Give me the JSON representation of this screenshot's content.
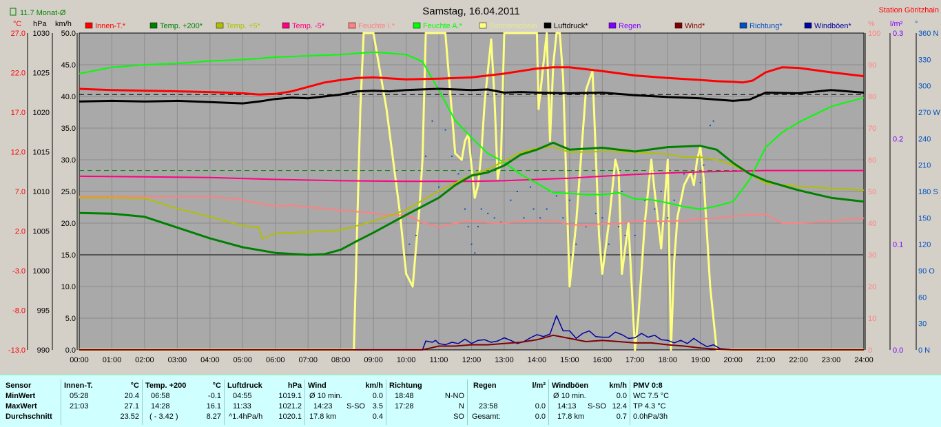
{
  "header": {
    "title": "Samstag, 16.04.2011",
    "station": "Station Göritzhain",
    "monthly_avg": "11.7 Monat-Ø"
  },
  "legend": [
    {
      "label": "Innen-T.*",
      "color": "#ff0000"
    },
    {
      "label": "Temp. +200*",
      "color": "#008000"
    },
    {
      "label": "Temp. +5*",
      "color": "#b0c000"
    },
    {
      "label": "Temp. -5*",
      "color": "#ff0080"
    },
    {
      "label": "Feuchte I.*",
      "color": "#ff8080"
    },
    {
      "label": "Feuchte A.*",
      "color": "#00ff00"
    },
    {
      "label": "Sonnenschein",
      "color": "#ffff80"
    },
    {
      "label": "Luftdruck*",
      "color": "#000000"
    },
    {
      "label": "Regen",
      "color": "#8000ff"
    },
    {
      "label": "Wind*",
      "color": "#800000"
    },
    {
      "label": "Richtung*",
      "color": "#0050c0"
    },
    {
      "label": "Windböen*",
      "color": "#0000a0"
    }
  ],
  "axes": {
    "temp_unit": "°C",
    "press_unit": "hPa",
    "speed_unit": "km/h",
    "pct_unit": "%",
    "rain_unit": "l/m²",
    "dir_unit": "°",
    "temp_ticks": [
      "27.0",
      "22.0",
      "17.0",
      "12.0",
      "7.0",
      "2.0",
      "-3.0",
      "-8.0",
      "-13.0"
    ],
    "press_ticks": [
      "1030",
      "1025",
      "1020",
      "1015",
      "1010",
      "1005",
      "1000",
      "995",
      "990"
    ],
    "speed_ticks": [
      "50.0",
      "45.0",
      "40.0",
      "35.0",
      "30.0",
      "25.0",
      "20.0",
      "15.0",
      "10.0",
      "5.0",
      "0.0"
    ],
    "pct_ticks": [
      "100",
      "90",
      "80",
      "70",
      "60",
      "50",
      "40",
      "30",
      "20",
      "10",
      "0"
    ],
    "rain_ticks": [
      "0.3",
      "0.2",
      "0.1",
      "0.0"
    ],
    "dir_ticks": [
      "360 N",
      "330",
      "300",
      "270 W",
      "240",
      "210",
      "180 S",
      "150",
      "120",
      "90 O",
      "60",
      "30",
      "0 N"
    ],
    "time_ticks": [
      "00:00",
      "01:00",
      "02:00",
      "03:00",
      "04:00",
      "05:00",
      "06:00",
      "07:00",
      "08:00",
      "09:00",
      "10:00",
      "11:00",
      "12:00",
      "13:00",
      "14:00",
      "15:00",
      "16:00",
      "17:00",
      "18:00",
      "19:00",
      "20:00",
      "21:00",
      "22:00",
      "23:00",
      "24:00"
    ]
  },
  "chart_data": {
    "type": "line",
    "xlabel": "",
    "x_unit": "hours",
    "xlim": [
      0,
      24
    ],
    "ylim_speed": [
      0,
      50
    ],
    "ylim_temp": [
      -13,
      27
    ],
    "ylim_pressure": [
      990,
      1030
    ],
    "ylim_percent": [
      0,
      100
    ],
    "ylim_rain": [
      0,
      0.3
    ],
    "ylim_direction": [
      0,
      360
    ],
    "grid": true,
    "reference_lines": [
      {
        "axis": "speed",
        "value": 15.0,
        "color": "#555555",
        "style": "solid"
      },
      {
        "axis": "speed",
        "value": 40.3,
        "color": "#000000",
        "style": "dashed"
      },
      {
        "axis": "speed",
        "value": 28.3,
        "color": "#008000",
        "style": "dashed"
      }
    ],
    "series": [
      {
        "name": "Innen-T.*",
        "axis": "speed",
        "color": "#ff0000",
        "width": 3,
        "x": [
          0,
          1,
          2,
          3,
          4,
          5,
          5.5,
          6,
          6.5,
          7,
          7.5,
          8,
          8.5,
          9,
          10,
          11,
          12,
          13,
          13.5,
          14,
          14.5,
          15,
          16,
          17,
          18,
          19,
          19.5,
          20,
          20.3,
          20.6,
          21,
          21.5,
          22,
          23,
          24
        ],
        "y": [
          41.2,
          41.0,
          40.9,
          40.8,
          40.7,
          40.5,
          40.3,
          40.4,
          40.8,
          41.5,
          42.2,
          42.6,
          42.9,
          43.0,
          42.7,
          42.8,
          43.0,
          43.6,
          44.0,
          44.4,
          44.6,
          44.6,
          44.0,
          43.3,
          42.9,
          42.6,
          42.4,
          42.3,
          42.2,
          42.5,
          43.8,
          44.6,
          44.5,
          43.8,
          43.2
        ]
      },
      {
        "name": "Luftdruck*",
        "axis": "speed",
        "color": "#000000",
        "width": 3,
        "x": [
          0,
          1,
          2,
          3,
          4,
          5,
          5.5,
          6,
          6.5,
          7,
          7.5,
          8,
          8.5,
          9,
          9.5,
          10,
          11,
          12,
          12.5,
          13,
          13.5,
          14,
          15,
          16,
          17,
          18,
          19,
          19.5,
          20,
          20.5,
          21,
          22,
          23,
          24
        ],
        "y": [
          39.2,
          39.3,
          39.2,
          39.3,
          39.1,
          38.9,
          39.2,
          39.6,
          39.8,
          39.7,
          40.0,
          40.3,
          40.8,
          40.9,
          40.8,
          41.0,
          41.2,
          41.0,
          41.1,
          40.6,
          40.7,
          40.6,
          40.5,
          40.6,
          40.2,
          39.9,
          39.7,
          39.5,
          39.3,
          39.5,
          40.6,
          40.5,
          41.0,
          40.6
        ]
      },
      {
        "name": "Feuchte A.*",
        "axis": "speed",
        "color": "#00ff00",
        "width": 2,
        "x": [
          0,
          1,
          2,
          3,
          4,
          5,
          6,
          7,
          8,
          9,
          9.5,
          10,
          10.5,
          11,
          11.5,
          12,
          12.5,
          13,
          13.5,
          14,
          14.5,
          15,
          15.5,
          16,
          16.5,
          17,
          17.5,
          18,
          18.5,
          19,
          19.5,
          20,
          20.5,
          21,
          21.5,
          22,
          23,
          24
        ],
        "y": [
          43.6,
          44.6,
          45.0,
          45.2,
          45.6,
          45.8,
          46.2,
          46.4,
          46.6,
          47.0,
          46.8,
          46.6,
          45.5,
          41.0,
          36.2,
          33.5,
          31.0,
          29.6,
          27.7,
          26.3,
          24.8,
          24.7,
          24.5,
          24.5,
          24.8,
          23.8,
          23.7,
          23.2,
          22.6,
          22.2,
          22.7,
          23.4,
          26.8,
          32.0,
          34.3,
          35.9,
          38.4,
          39.8
        ]
      },
      {
        "name": "Temp. +5*",
        "axis": "speed",
        "color": "#b0c000",
        "width": 2,
        "x": [
          0,
          1,
          2,
          3,
          4,
          5,
          5.5,
          5.6,
          6,
          7,
          8,
          9,
          10,
          11,
          12,
          12.5,
          13,
          13.5,
          14,
          14.5,
          15,
          16,
          17,
          18,
          18.5,
          19,
          19.5,
          20,
          20.5,
          21,
          22,
          23,
          24
        ],
        "y": [
          24.0,
          24.0,
          23.9,
          22.3,
          21.0,
          19.6,
          19.3,
          17.5,
          18.4,
          18.6,
          18.9,
          20.3,
          22.1,
          25.1,
          27.6,
          28.5,
          29.8,
          31.2,
          31.8,
          32.0,
          31.2,
          31.3,
          31.2,
          30.9,
          30.4,
          30.4,
          30.0,
          29.2,
          27.8,
          26.3,
          25.8,
          25.5,
          25.2
        ]
      },
      {
        "name": "Temp. +200*",
        "axis": "speed",
        "color": "#008000",
        "width": 3,
        "x": [
          0,
          1,
          2,
          3,
          4,
          5,
          6,
          7,
          7.5,
          8,
          8.5,
          9,
          10,
          11,
          11.5,
          12,
          12.5,
          13,
          13.5,
          14,
          14.5,
          15,
          16,
          17,
          18,
          19,
          19.5,
          20,
          20.5,
          21,
          22,
          23,
          24
        ],
        "y": [
          21.6,
          21.5,
          21.0,
          19.3,
          17.6,
          16.2,
          15.3,
          15.0,
          15.1,
          15.8,
          17.2,
          18.5,
          21.3,
          24.0,
          26.0,
          27.5,
          28.0,
          29.1,
          30.8,
          31.6,
          32.7,
          31.6,
          31.9,
          31.3,
          32.0,
          32.2,
          31.6,
          29.5,
          27.8,
          26.7,
          25.2,
          24.0,
          23.4
        ]
      },
      {
        "name": "Temp. -5*",
        "axis": "speed",
        "color": "#ff0080",
        "width": 2,
        "x": [
          0,
          2,
          4,
          6,
          8,
          10,
          11,
          12,
          13,
          14,
          15,
          16,
          17,
          18,
          19,
          20,
          21,
          22,
          23,
          24
        ],
        "y": [
          27.4,
          27.3,
          27.2,
          26.9,
          26.7,
          26.6,
          26.6,
          26.6,
          26.7,
          26.9,
          27.1,
          27.4,
          27.7,
          27.9,
          28.1,
          28.2,
          28.3,
          28.3,
          28.3,
          28.3
        ]
      },
      {
        "name": "Feuchte I.*",
        "axis": "speed",
        "color": "#ff8080",
        "width": 2,
        "x": [
          0,
          1,
          2,
          3,
          4,
          5,
          5.5,
          6,
          6.5,
          7,
          7.5,
          8,
          9,
          9.5,
          10,
          10.5,
          11,
          11.5,
          12,
          12.5,
          13,
          13.5,
          14,
          14.5,
          15,
          15.5,
          16,
          16.5,
          17,
          17.5,
          18,
          18.5,
          19,
          19.5,
          20,
          20.5,
          21,
          21.5,
          22,
          23,
          24
        ],
        "y": [
          24.2,
          24.2,
          24.2,
          24.2,
          24.2,
          23.7,
          23.1,
          22.7,
          22.8,
          22.5,
          22.3,
          22.0,
          21.6,
          21.2,
          21.3,
          20.1,
          19.4,
          20.0,
          20.4,
          20.1,
          20.0,
          20.3,
          20.4,
          20.4,
          19.8,
          19.6,
          19.9,
          19.9,
          20.4,
          20.3,
          20.3,
          20.4,
          20.7,
          20.8,
          21.1,
          21.3,
          21.4,
          20.0,
          20.0,
          20.3,
          20.8
        ]
      },
      {
        "name": "Sonnenschein",
        "axis": "speed",
        "color": "#ffff80",
        "width": 3,
        "x": [
          0,
          8.4,
          8.6,
          8.7,
          8.8,
          9.0,
          9.4,
          9.6,
          9.8,
          10.0,
          10.2,
          10.3,
          10.4,
          10.5,
          10.6,
          11.2,
          11.5,
          11.7,
          11.8,
          11.9,
          12.0,
          12.1,
          12.2,
          12.3,
          12.4,
          12.5,
          12.6,
          12.7,
          12.8,
          12.9,
          13.0,
          13.5,
          14.0,
          14.05,
          14.3,
          14.4,
          14.5,
          14.6,
          14.7,
          14.8,
          15.0,
          15.2,
          15.5,
          15.7,
          15.9,
          16.0,
          16.2,
          16.4,
          16.5,
          16.6,
          16.8,
          17.0,
          17.1,
          17.3,
          17.5,
          17.6,
          17.8,
          18.0,
          18.1,
          18.2,
          18.3,
          18.5,
          18.7,
          18.8,
          18.9,
          19.0,
          19.1,
          19.3,
          19.5,
          24
        ],
        "y": [
          0,
          0,
          38,
          50,
          50,
          50,
          38,
          30,
          22,
          12,
          10,
          16,
          22,
          30,
          50,
          50,
          31,
          30,
          33,
          34,
          29,
          24,
          26,
          31,
          39,
          44,
          49,
          40,
          27,
          30,
          50,
          50,
          50,
          38,
          50,
          33,
          45,
          50,
          50,
          43,
          10,
          20,
          41,
          44,
          18,
          12,
          20,
          30,
          28,
          12,
          20,
          0,
          5,
          20,
          30,
          25,
          16,
          30,
          0,
          14,
          21,
          26,
          28,
          26,
          30,
          32,
          27,
          10,
          0,
          0
        ]
      },
      {
        "name": "Windböen*",
        "axis": "speed",
        "color": "#0000a0",
        "width": 1.5,
        "x": [
          0,
          10.5,
          10.6,
          10.8,
          10.9,
          11.0,
          11.2,
          11.4,
          11.6,
          11.8,
          12.0,
          12.2,
          12.4,
          12.6,
          12.8,
          13.0,
          13.2,
          13.4,
          13.6,
          13.8,
          14.0,
          14.2,
          14.4,
          14.6,
          14.8,
          15.0,
          15.2,
          15.4,
          15.6,
          15.8,
          16.0,
          16.2,
          16.4,
          16.6,
          16.8,
          17.0,
          17.2,
          17.4,
          17.6,
          17.8,
          18.0,
          18.2,
          18.4,
          18.6,
          18.8,
          19.0,
          19.2,
          19.4,
          19.6,
          20,
          24
        ],
        "y": [
          0,
          0,
          1.4,
          1.2,
          1.5,
          1.0,
          0.8,
          1.2,
          1.0,
          1.7,
          1.0,
          1.5,
          1.6,
          1.2,
          1.4,
          1.9,
          1.5,
          1.0,
          1.3,
          1.9,
          2.4,
          2.1,
          2.5,
          5.4,
          3.0,
          3.0,
          1.8,
          2.6,
          3.0,
          2.1,
          2.0,
          2.0,
          2.8,
          2.4,
          1.8,
          1.9,
          2.6,
          2.0,
          2.3,
          1.6,
          1.5,
          1.1,
          1.5,
          1.0,
          1.8,
          1.1,
          0.5,
          0.8,
          0.2,
          0,
          0
        ]
      },
      {
        "name": "Wind*",
        "axis": "speed",
        "color": "#800000",
        "width": 2,
        "x": [
          0,
          10.5,
          11,
          11.5,
          12,
          12.5,
          13,
          13.5,
          14,
          14.5,
          15,
          15.5,
          16,
          16.5,
          17,
          17.5,
          18,
          18.5,
          19,
          19.5,
          20,
          24
        ],
        "y": [
          0,
          0,
          0.6,
          0.6,
          0.8,
          0.8,
          1.0,
          1.2,
          1.6,
          2.3,
          1.8,
          1.3,
          1.5,
          1.3,
          1.1,
          1.1,
          0.8,
          0.6,
          0.3,
          0.1,
          0,
          0
        ]
      },
      {
        "name": "Richtung*",
        "axis": "direction",
        "color": "#0050c0",
        "type": "scatter",
        "x": [
          10.1,
          10.3,
          10.6,
          10.8,
          11.0,
          11.2,
          11.4,
          11.6,
          11.8,
          11.9,
          12.0,
          12.1,
          12.2,
          12.3,
          12.5,
          12.7,
          12.9,
          13.2,
          13.4,
          13.6,
          13.8,
          13.9,
          14.1,
          14.3,
          14.6,
          14.8,
          15.0,
          15.2,
          15.5,
          15.8,
          16.0,
          16.2,
          16.5,
          16.6,
          16.7,
          17.0,
          17.3,
          17.6,
          17.8,
          18.0,
          18.2,
          18.5,
          18.8,
          19.0,
          19.1,
          19.3,
          19.4
        ],
        "y": [
          120,
          130,
          220,
          260,
          185,
          250,
          220,
          200,
          160,
          140,
          120,
          110,
          140,
          160,
          155,
          150,
          145,
          170,
          180,
          150,
          185,
          160,
          150,
          160,
          175,
          150,
          170,
          120,
          140,
          155,
          150,
          120,
          140,
          180,
          130,
          130,
          170,
          160,
          180,
          150,
          170,
          200,
          200,
          190,
          210,
          255,
          260
        ]
      }
    ]
  },
  "stats": {
    "sensor": {
      "title": "Sensor",
      "rows": [
        "MinWert",
        "MaxWert",
        "Durchschnitt"
      ]
    },
    "innen": {
      "title": "Innen-T.",
      "unit": "°C",
      "min_t": "05:28",
      "min_v": "20.4",
      "max_t": "21:03",
      "max_v": "27.1",
      "avg_v": "23.52"
    },
    "temp200": {
      "title": "Temp. +200",
      "unit": "°C",
      "min_t": "06:58",
      "min_v": "-0.1",
      "max_t": "14:28",
      "max_v": "16.1",
      "avg_t": "( - 3.42 )",
      "avg_v": "8.27"
    },
    "luftdruck": {
      "title": "Luftdruck",
      "unit": "hPa",
      "min_t": "04:55",
      "min_v": "1019.1",
      "max_t": "11:33",
      "max_v": "1021.2",
      "avg_t": "^1.4hPa/h",
      "avg_v": "1020.1"
    },
    "wind": {
      "title": "Wind",
      "unit": "km/h",
      "min_t": "Ø 10 min.",
      "min_v": "0.0",
      "max_t": "14:23",
      "max_m": "S-SO",
      "max_v": "3.5",
      "avg_t": "17.8 km",
      "avg_v": "0.4"
    },
    "richtung": {
      "title": "Richtung",
      "min_t": "18:48",
      "min_v": "N-NO",
      "max_t": "17:28",
      "max_v": "N",
      "avg_v": "SO"
    },
    "regen": {
      "title": "Regen",
      "unit": "l/m²",
      "max_t": "23:58",
      "max_v": "0.0",
      "avg_t": "Gesamt:",
      "avg_v": "0.0"
    },
    "windboeen": {
      "title": "Windböen",
      "unit": "km/h",
      "min_t": "Ø 10 min.",
      "min_v": "0.0",
      "max_t": "14:13",
      "max_m": "S-SO",
      "max_v": "12.4",
      "avg_t": "17.8 km",
      "avg_v": "0.7"
    },
    "pmv": {
      "title": "PMV 0:8",
      "line1": "WC 7.5 °C",
      "line2": "TP 4.3 °C",
      "line3": "0.0hPa/3h"
    }
  }
}
